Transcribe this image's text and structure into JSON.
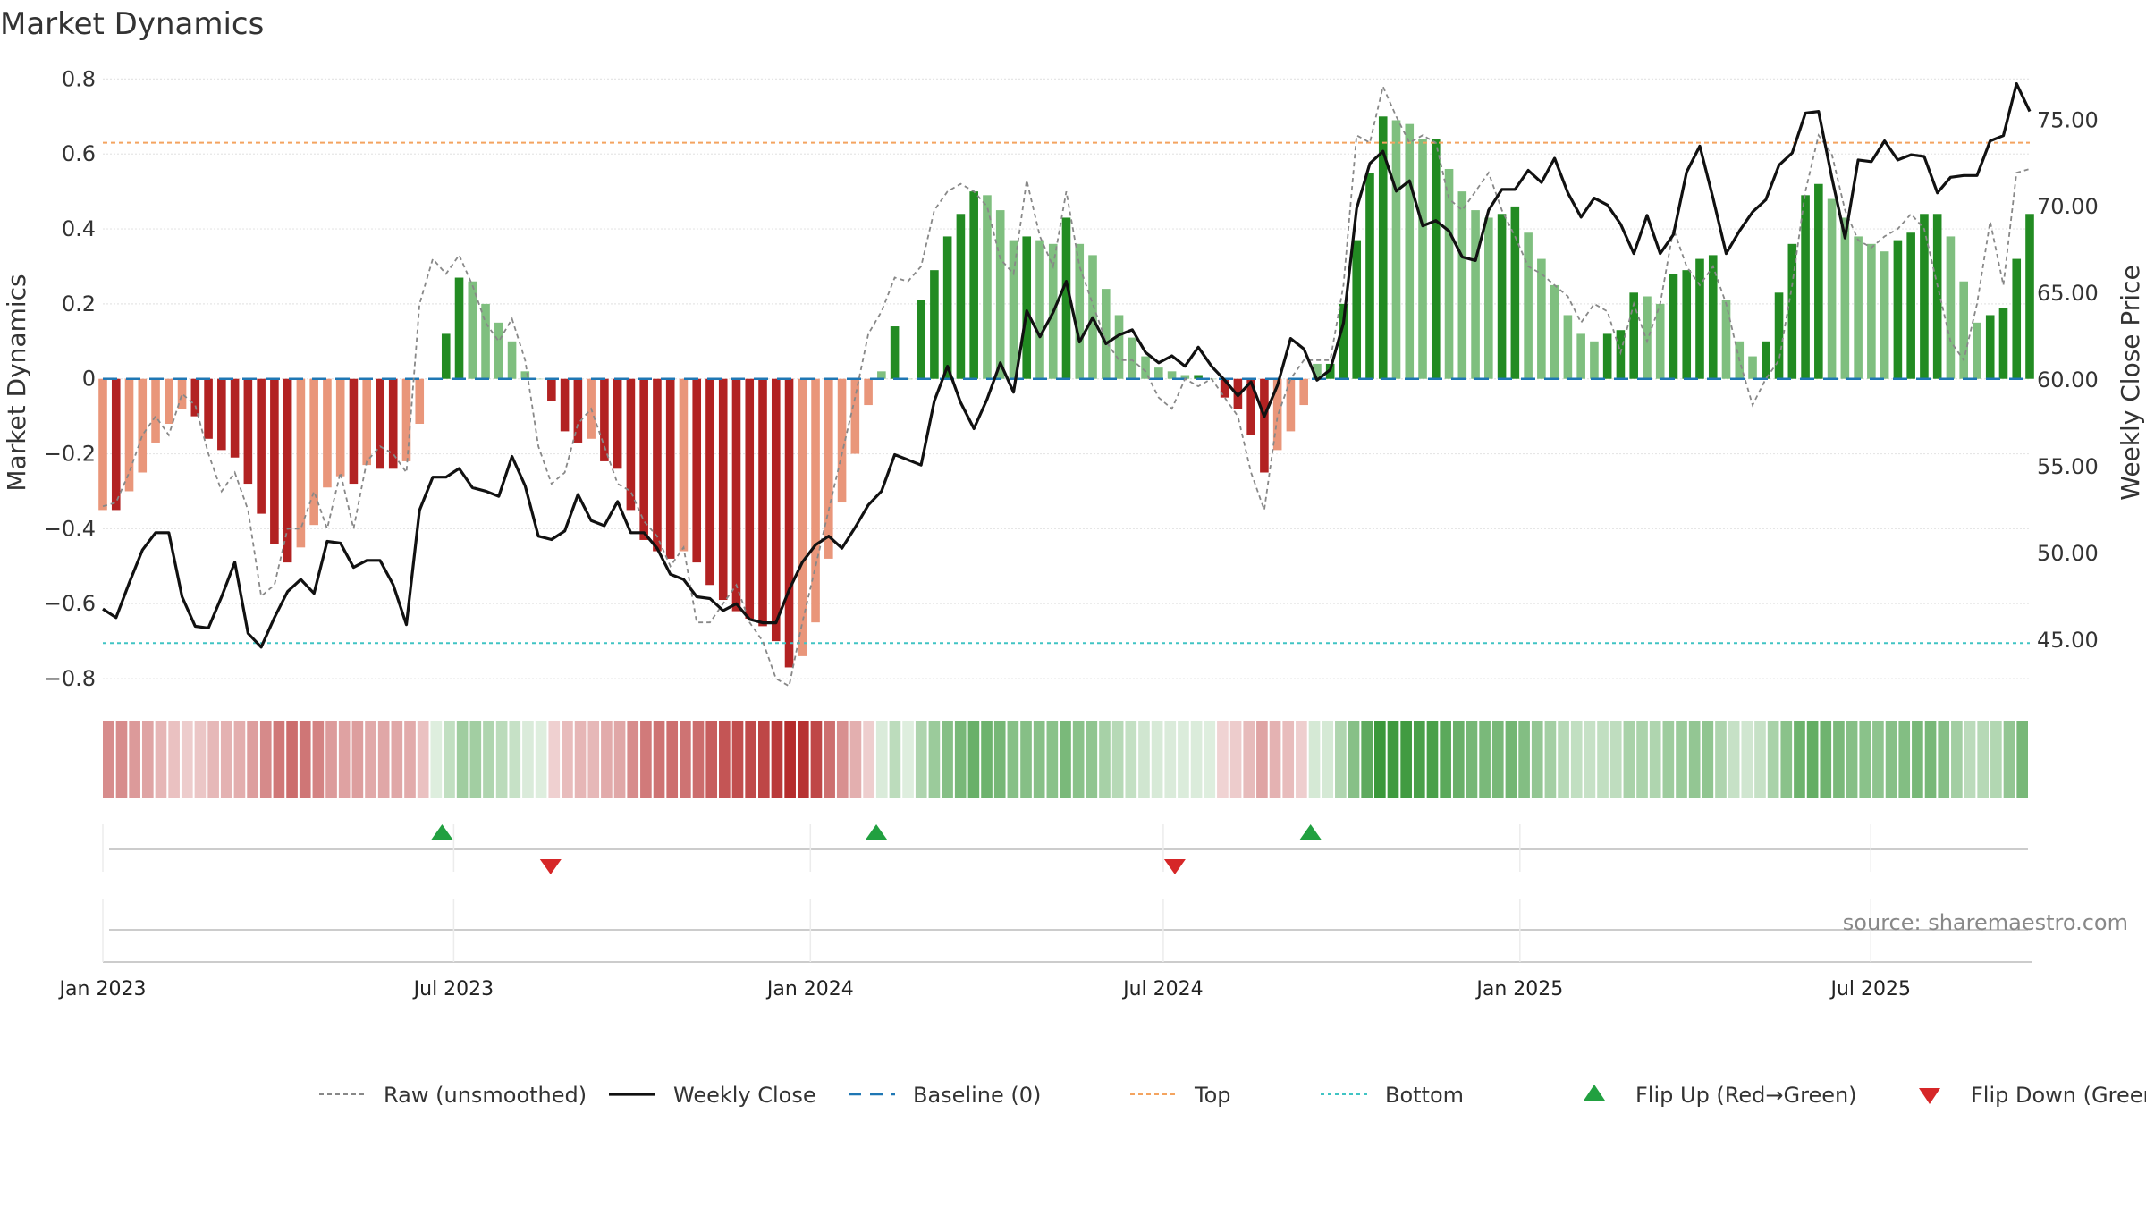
{
  "chart_data": {
    "type": "bar",
    "title": "Market Dynamics",
    "ylabel": "Market Dynamics",
    "y2label": "Weekly Close Price",
    "ylim": [
      -0.85,
      0.82
    ],
    "y2lim": [
      41.7,
      77.8
    ],
    "yticks": [
      0.8,
      0.6,
      0.4,
      0.2,
      0,
      -0.2,
      -0.4,
      -0.6,
      -0.8
    ],
    "ytick_labels": [
      "0.8",
      "0.6",
      "0.4",
      "0.2",
      "0",
      "−0.2",
      "−0.4",
      "−0.6",
      "−0.8"
    ],
    "y2ticks": [
      75,
      70,
      65,
      60,
      55,
      50,
      45
    ],
    "y2tick_labels": [
      "75.00",
      "70.00",
      "65.00",
      "60.00",
      "55.00",
      "50.00",
      "45.00"
    ],
    "x_start": "2023-01-01",
    "x_end": "2025-09-21",
    "x_step_days": 7,
    "xticks": [
      {
        "date": "2023-01-01",
        "label": "Jan 2023"
      },
      {
        "date": "2023-07-01",
        "label": "Jul 2023"
      },
      {
        "date": "2024-01-01",
        "label": "Jan 2024"
      },
      {
        "date": "2024-07-01",
        "label": "Jul 2024"
      },
      {
        "date": "2025-01-01",
        "label": "Jan 2025"
      },
      {
        "date": "2025-07-01",
        "label": "Jul 2025"
      }
    ],
    "top_level": 0.63,
    "bottom_level": -0.705,
    "series": [
      {
        "name": "Market Dynamics",
        "values": [
          -0.35,
          -0.35,
          -0.3,
          -0.25,
          -0.17,
          -0.12,
          -0.08,
          -0.1,
          -0.16,
          -0.19,
          -0.21,
          -0.28,
          -0.36,
          -0.44,
          -0.49,
          -0.45,
          -0.39,
          -0.29,
          -0.26,
          -0.28,
          -0.23,
          -0.24,
          -0.24,
          -0.22,
          -0.12,
          0.0,
          0.12,
          0.27,
          0.26,
          0.2,
          0.15,
          0.1,
          0.02,
          0.0,
          -0.06,
          -0.14,
          -0.17,
          -0.16,
          -0.22,
          -0.24,
          -0.35,
          -0.43,
          -0.46,
          -0.48,
          -0.46,
          -0.49,
          -0.55,
          -0.59,
          -0.62,
          -0.64,
          -0.66,
          -0.7,
          -0.77,
          -0.74,
          -0.65,
          -0.48,
          -0.33,
          -0.2,
          -0.07,
          0.02,
          0.14,
          0.0,
          0.21,
          0.29,
          0.38,
          0.44,
          0.5,
          0.49,
          0.45,
          0.37,
          0.38,
          0.37,
          0.36,
          0.43,
          0.36,
          0.33,
          0.24,
          0.17,
          0.11,
          0.06,
          0.03,
          0.02,
          0.01,
          0.01,
          0.0,
          -0.05,
          -0.08,
          -0.15,
          -0.25,
          -0.19,
          -0.14,
          -0.07,
          0.04,
          0.04,
          0.2,
          0.37,
          0.55,
          0.7,
          0.69,
          0.68,
          0.64,
          0.64,
          0.56,
          0.5,
          0.45,
          0.43,
          0.44,
          0.46,
          0.39,
          0.32,
          0.25,
          0.17,
          0.12,
          0.1,
          0.12,
          0.13,
          0.23,
          0.22,
          0.2,
          0.28,
          0.29,
          0.32,
          0.33,
          0.21,
          0.1,
          0.06,
          0.1,
          0.23,
          0.36,
          0.49,
          0.52,
          0.48,
          0.43,
          0.38,
          0.36,
          0.34,
          0.37,
          0.39,
          0.44,
          0.44,
          0.38,
          0.26,
          0.15,
          0.17,
          0.19,
          0.32,
          0.44
        ]
      },
      {
        "name": "Raw (unsmoothed)",
        "values": [
          -0.34,
          -0.33,
          -0.25,
          -0.15,
          -0.1,
          -0.15,
          -0.04,
          -0.07,
          -0.2,
          -0.3,
          -0.25,
          -0.35,
          -0.58,
          -0.55,
          -0.4,
          -0.4,
          -0.3,
          -0.4,
          -0.25,
          -0.4,
          -0.22,
          -0.18,
          -0.2,
          -0.25,
          0.2,
          0.32,
          0.28,
          0.33,
          0.25,
          0.15,
          0.1,
          0.16,
          0.05,
          -0.18,
          -0.28,
          -0.25,
          -0.12,
          -0.08,
          -0.18,
          -0.28,
          -0.3,
          -0.38,
          -0.42,
          -0.5,
          -0.45,
          -0.65,
          -0.65,
          -0.6,
          -0.55,
          -0.65,
          -0.7,
          -0.8,
          -0.82,
          -0.65,
          -0.5,
          -0.35,
          -0.2,
          -0.05,
          0.12,
          0.18,
          0.27,
          0.26,
          0.3,
          0.45,
          0.5,
          0.52,
          0.5,
          0.46,
          0.32,
          0.28,
          0.53,
          0.38,
          0.3,
          0.5,
          0.3,
          0.2,
          0.1,
          0.05,
          0.05,
          0.02,
          -0.05,
          -0.08,
          0.0,
          -0.02,
          0.0,
          -0.05,
          -0.1,
          -0.25,
          -0.35,
          -0.1,
          0.0,
          0.05,
          0.05,
          0.05,
          0.25,
          0.65,
          0.63,
          0.78,
          0.7,
          0.63,
          0.65,
          0.63,
          0.48,
          0.45,
          0.5,
          0.55,
          0.45,
          0.38,
          0.3,
          0.28,
          0.25,
          0.22,
          0.15,
          0.2,
          0.18,
          0.07,
          0.2,
          0.1,
          0.2,
          0.4,
          0.3,
          0.25,
          0.3,
          0.2,
          0.05,
          -0.07,
          0.0,
          0.05,
          0.25,
          0.5,
          0.65,
          0.6,
          0.45,
          0.37,
          0.35,
          0.38,
          0.4,
          0.44,
          0.4,
          0.25,
          0.1,
          0.05,
          0.2,
          0.42,
          0.25,
          0.55,
          0.56
        ]
      },
      {
        "name": "Weekly Close",
        "values": [
          46.8,
          46.3,
          48.3,
          50.2,
          51.2,
          51.2,
          47.5,
          45.8,
          45.7,
          47.5,
          49.5,
          45.4,
          44.6,
          46.3,
          47.8,
          48.5,
          47.7,
          50.7,
          50.6,
          49.2,
          49.6,
          49.6,
          48.2,
          45.9,
          52.5,
          54.4,
          54.4,
          54.9,
          53.8,
          53.6,
          53.3,
          55.6,
          53.9,
          51.0,
          50.8,
          51.3,
          53.4,
          51.9,
          51.6,
          53.0,
          51.2,
          51.2,
          50.3,
          48.8,
          48.5,
          47.5,
          47.4,
          46.7,
          47.1,
          46.2,
          46.0,
          46.0,
          47.9,
          49.5,
          50.5,
          51.0,
          50.3,
          51.5,
          52.8,
          53.6,
          55.7,
          55.4,
          55.1,
          58.8,
          60.8,
          58.7,
          57.2,
          58.9,
          61.0,
          59.3,
          64.0,
          62.5,
          63.9,
          65.7,
          62.2,
          63.6,
          62.1,
          62.6,
          62.9,
          61.6,
          61.0,
          61.4,
          60.8,
          61.9,
          60.8,
          60.0,
          59.1,
          59.9,
          57.9,
          59.7,
          62.4,
          61.8,
          60.0,
          60.6,
          63.3,
          69.9,
          72.5,
          73.2,
          70.9,
          71.5,
          68.9,
          69.2,
          68.6,
          67.1,
          66.9,
          69.8,
          71.0,
          71.0,
          72.1,
          71.4,
          72.8,
          70.8,
          69.4,
          70.5,
          70.1,
          69.0,
          67.3,
          69.5,
          67.3,
          68.4,
          72.0,
          73.5,
          70.5,
          67.3,
          68.6,
          69.7,
          70.4,
          72.4,
          73.1,
          75.4,
          75.5,
          71.7,
          68.2,
          72.7,
          72.6,
          73.8,
          72.7,
          73.0,
          72.9,
          70.8,
          71.7,
          71.8,
          71.8,
          73.8,
          74.1,
          77.1,
          75.5
        ]
      }
    ],
    "flips": [
      {
        "type": "up",
        "date": "2023-06-25"
      },
      {
        "type": "down",
        "date": "2023-08-20"
      },
      {
        "type": "up",
        "date": "2024-02-04"
      },
      {
        "type": "down",
        "date": "2024-07-07"
      },
      {
        "type": "up",
        "date": "2024-09-15"
      }
    ],
    "legend": [
      {
        "key": "raw",
        "label": "Raw (unsmoothed)"
      },
      {
        "key": "close",
        "label": "Weekly Close"
      },
      {
        "key": "baseline",
        "label": "Baseline (0)"
      },
      {
        "key": "top",
        "label": "Top"
      },
      {
        "key": "bottom",
        "label": "Bottom"
      },
      {
        "key": "flipup",
        "label": "Flip Up (Red→Green)"
      },
      {
        "key": "flipdown",
        "label": "Flip Down (Green→Red)"
      }
    ],
    "legend_position": "bottom-center",
    "grid": true,
    "colors": {
      "green_strong": "#228b22",
      "green_light": "#7fbf7f",
      "red_strong": "#b22222",
      "red_light": "#e9967a",
      "close_line": "#111111",
      "raw_line": "#888888",
      "baseline": "#1f77b4",
      "top": "#f4a460",
      "bottom": "#40c4c4",
      "flip_up": "#21a040",
      "flip_down": "#d62728"
    }
  },
  "source": "source: sharemaestro.com"
}
